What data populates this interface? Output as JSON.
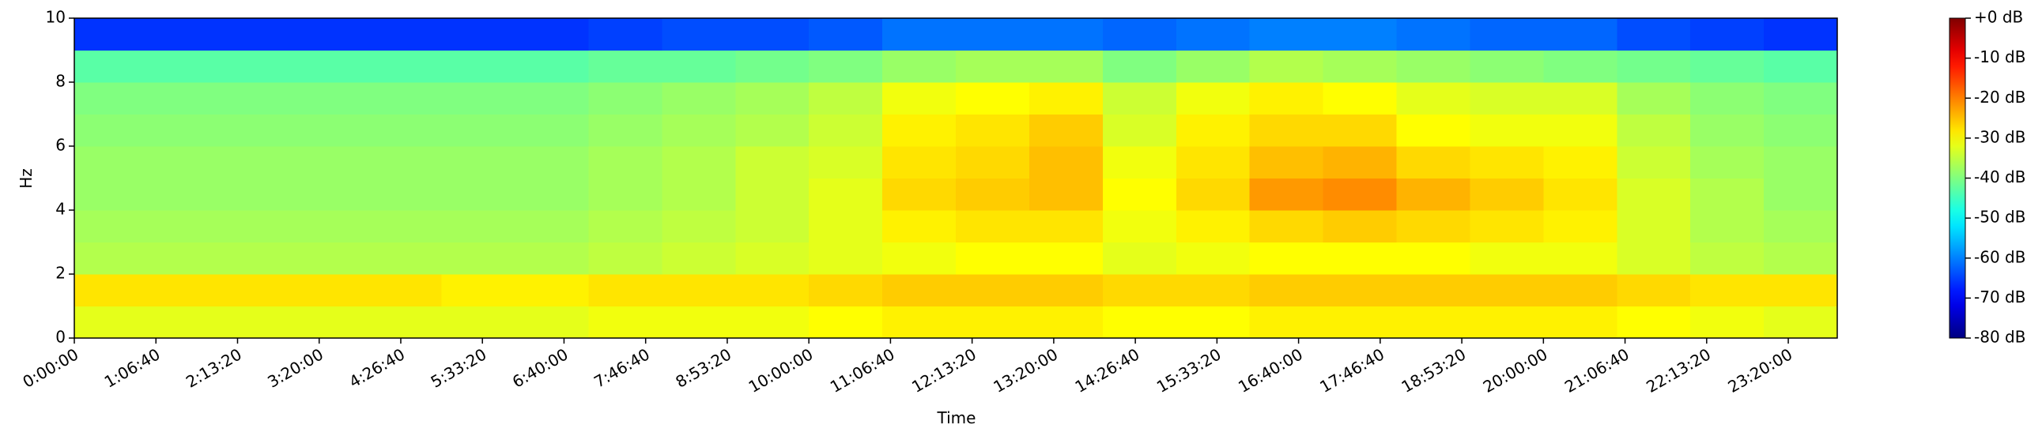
{
  "chart_data": {
    "type": "spectrogram",
    "xlabel": "Time",
    "ylabel": "Hz",
    "xlim": [
      0,
      86400
    ],
    "ylim": [
      0,
      10
    ],
    "xticks": [
      {
        "value": 0,
        "label": "0:00:00"
      },
      {
        "value": 4000,
        "label": "1:06:40"
      },
      {
        "value": 8000,
        "label": "2:13:20"
      },
      {
        "value": 12000,
        "label": "3:20:00"
      },
      {
        "value": 16000,
        "label": "4:26:40"
      },
      {
        "value": 20000,
        "label": "5:33:20"
      },
      {
        "value": 24000,
        "label": "6:40:00"
      },
      {
        "value": 28000,
        "label": "7:46:40"
      },
      {
        "value": 32000,
        "label": "8:53:20"
      },
      {
        "value": 36000,
        "label": "10:00:00"
      },
      {
        "value": 40000,
        "label": "11:06:40"
      },
      {
        "value": 44000,
        "label": "12:13:20"
      },
      {
        "value": 48000,
        "label": "13:20:00"
      },
      {
        "value": 52000,
        "label": "14:26:40"
      },
      {
        "value": 56000,
        "label": "15:33:20"
      },
      {
        "value": 60000,
        "label": "16:40:00"
      },
      {
        "value": 64000,
        "label": "17:46:40"
      },
      {
        "value": 68000,
        "label": "18:53:20"
      },
      {
        "value": 72000,
        "label": "20:00:00"
      },
      {
        "value": 76000,
        "label": "21:06:40"
      },
      {
        "value": 80000,
        "label": "22:13:20"
      },
      {
        "value": 84000,
        "label": "23:20:00"
      }
    ],
    "yticks": [
      0,
      2,
      4,
      6,
      8,
      10
    ],
    "xbins": [
      0,
      3600,
      7200,
      10800,
      14400,
      18000,
      21600,
      25200,
      28800,
      32400,
      36000,
      39600,
      43200,
      46800,
      50400,
      54000,
      57600,
      61200,
      64800,
      68400,
      72000,
      75600,
      79200,
      82800,
      86400
    ],
    "ybins": [
      0,
      1,
      2,
      3,
      4,
      5,
      6,
      7,
      8,
      9,
      10
    ],
    "z": [
      [
        -32,
        -32,
        -32,
        -32,
        -32,
        -32,
        -32,
        -31,
        -31,
        -31,
        -30,
        -29,
        -29,
        -29,
        -30,
        -30,
        -29,
        -29,
        -29,
        -29,
        -29,
        -30,
        -31,
        -32
      ],
      [
        -28,
        -28,
        -28,
        -28,
        -28,
        -29,
        -29,
        -28,
        -28,
        -28,
        -27,
        -26,
        -26,
        -26,
        -27,
        -27,
        -26,
        -26,
        -26,
        -26,
        -26,
        -27,
        -28,
        -28
      ],
      [
        -36,
        -36,
        -36,
        -36,
        -36,
        -36,
        -36,
        -35,
        -34,
        -33,
        -32,
        -31,
        -30,
        -30,
        -32,
        -31,
        -30,
        -30,
        -30,
        -31,
        -31,
        -33,
        -35,
        -36
      ],
      [
        -37,
        -37,
        -37,
        -37,
        -37,
        -37,
        -37,
        -36,
        -35,
        -34,
        -32,
        -29,
        -28,
        -28,
        -31,
        -29,
        -27,
        -26,
        -27,
        -28,
        -29,
        -33,
        -36,
        -37
      ],
      [
        -38,
        -38,
        -38,
        -38,
        -38,
        -38,
        -38,
        -37,
        -36,
        -34,
        -32,
        -27,
        -26,
        -25,
        -30,
        -27,
        -22,
        -21,
        -24,
        -26,
        -28,
        -33,
        -36,
        -38
      ],
      [
        -38,
        -38,
        -38,
        -38,
        -38,
        -38,
        -38,
        -37,
        -36,
        -34,
        -33,
        -28,
        -27,
        -25,
        -31,
        -28,
        -25,
        -24,
        -27,
        -28,
        -29,
        -34,
        -37,
        -38
      ],
      [
        -39,
        -39,
        -39,
        -39,
        -39,
        -39,
        -39,
        -38,
        -37,
        -36,
        -34,
        -29,
        -28,
        -26,
        -33,
        -29,
        -27,
        -27,
        -30,
        -31,
        -31,
        -35,
        -38,
        -39
      ],
      [
        -40,
        -40,
        -40,
        -40,
        -40,
        -40,
        -40,
        -39,
        -38,
        -37,
        -35,
        -31,
        -30,
        -29,
        -34,
        -31,
        -29,
        -30,
        -32,
        -33,
        -33,
        -37,
        -39,
        -40
      ],
      [
        -43,
        -43,
        -43,
        -43,
        -43,
        -43,
        -43,
        -42,
        -42,
        -41,
        -40,
        -38,
        -37,
        -37,
        -40,
        -38,
        -36,
        -37,
        -38,
        -39,
        -40,
        -41,
        -42,
        -43
      ],
      [
        -66,
        -66,
        -66,
        -66,
        -66,
        -66,
        -66,
        -65,
        -64,
        -64,
        -63,
        -61,
        -61,
        -61,
        -62,
        -61,
        -60,
        -60,
        -61,
        -62,
        -62,
        -64,
        -65,
        -66
      ]
    ],
    "colormap": "jet",
    "clim": [
      -80,
      0
    ],
    "cticks": [
      {
        "value": 0,
        "label": "+0 dB"
      },
      {
        "value": -10,
        "label": "-10 dB"
      },
      {
        "value": -20,
        "label": "-20 dB"
      },
      {
        "value": -30,
        "label": "-30 dB"
      },
      {
        "value": -40,
        "label": "-40 dB"
      },
      {
        "value": -50,
        "label": "-50 dB"
      },
      {
        "value": -60,
        "label": "-60 dB"
      },
      {
        "value": -70,
        "label": "-70 dB"
      },
      {
        "value": -80,
        "label": "-80 dB"
      }
    ]
  }
}
